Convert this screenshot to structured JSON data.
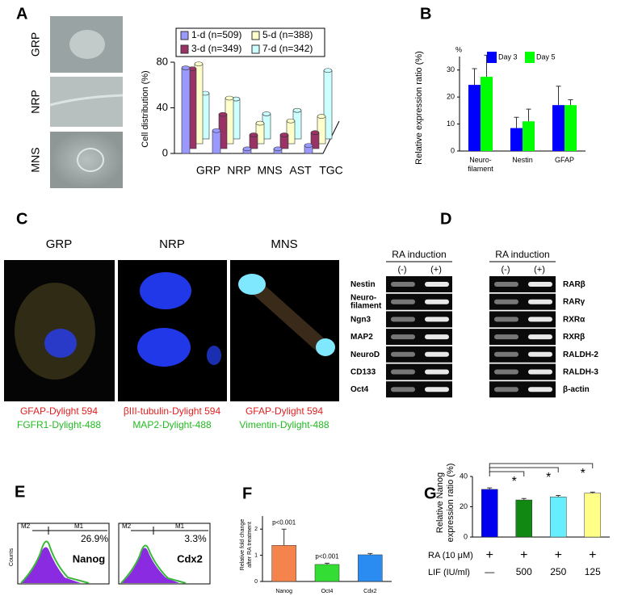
{
  "panels": {
    "labels": [
      "A",
      "B",
      "C",
      "D",
      "E",
      "F",
      "G"
    ],
    "a_images": [
      "GRP",
      "NRP",
      "MNS"
    ],
    "c_images": [
      {
        "title": "GRP",
        "red": "GFAP-Dylight  594",
        "green": "FGFR1-Dylight-488"
      },
      {
        "title": "NRP",
        "red": "βIII-tubulin-Dylight  594",
        "green": "MAP2-Dylight-488"
      },
      {
        "title": "MNS",
        "red": "GFAP-Dylight  594",
        "green": "Vimentin-Dylight-488"
      }
    ],
    "d_gels": [
      {
        "title": "RA induction",
        "lanes": [
          "(-)",
          "(+)"
        ],
        "rows": [
          "Nestin",
          "Neuro-\nfilament",
          "Ngn3",
          "MAP2",
          "NeuroD",
          "CD133",
          "Oct4"
        ]
      },
      {
        "title": "RA induction",
        "lanes": [
          "(-)",
          "(+)"
        ],
        "rows": [
          "RARβ",
          "RARγ",
          "RXRα",
          "RXRβ",
          "RALDH-2",
          "RALDH-3",
          "β-actin"
        ]
      }
    ],
    "e_plots": [
      {
        "gates": [
          "M2",
          "M1"
        ],
        "percent": "26.9%",
        "marker": "Nanog",
        "ylabel": "Counts"
      },
      {
        "gates": [
          "M2",
          "M1"
        ],
        "percent": "3.3%",
        "marker": "Cdx2"
      }
    ]
  },
  "chart_data": [
    {
      "type": "bar3d",
      "ylabel": "Cell distribution  (%)",
      "categories": [
        "GRP",
        "NRP",
        "MNS",
        "AST",
        "TGC"
      ],
      "ylim": [
        0,
        80
      ],
      "yticks": [
        0,
        40,
        80
      ],
      "series": [
        {
          "name": "1-d (n=509)",
          "color": "#9999ff",
          "values": [
            75,
            20,
            4,
            4,
            7
          ]
        },
        {
          "name": "3-d (n=349)",
          "color": "#993366",
          "values": [
            70,
            30,
            12,
            12,
            14
          ]
        },
        {
          "name": "5-d (n=388)",
          "color": "#ffffcc",
          "values": [
            70,
            40,
            18,
            20,
            24
          ]
        },
        {
          "name": "7-d (n=342)",
          "color": "#ccffff",
          "values": [
            40,
            35,
            22,
            25,
            60
          ]
        }
      ]
    },
    {
      "type": "bar",
      "ylabel": "Relative expression ratio (%)",
      "unit_label": "%",
      "categories": [
        "Neuro-\nfilament",
        "Nestin",
        "GFAP"
      ],
      "ylim": [
        0,
        35
      ],
      "yticks": [
        0,
        10,
        20,
        30
      ],
      "series": [
        {
          "name": "Day 3",
          "color": "#0000ff",
          "values": [
            24.5,
            8.5,
            17
          ],
          "errors": [
            6,
            4,
            7
          ]
        },
        {
          "name": "Day 5",
          "color": "#00ff00",
          "values": [
            27.5,
            11,
            17
          ],
          "errors": [
            8,
            4.5,
            2
          ]
        }
      ]
    },
    {
      "type": "bar",
      "ylabel": [
        "Relative fold change",
        "after RA treatment"
      ],
      "categories": [
        "Nanog",
        "Oct4",
        "Cdx2"
      ],
      "ylim": [
        0,
        2.5
      ],
      "yticks": [
        0,
        1,
        2
      ],
      "colors": [
        "#f4844c",
        "#33dd33",
        "#2a8cf0"
      ],
      "annotations": [
        "p<0.001",
        "p<0.001"
      ],
      "values": [
        1.38,
        0.65,
        1.02
      ],
      "errors": [
        0.62,
        0.05,
        0.05
      ]
    },
    {
      "type": "bar",
      "ylabel": [
        "Relative Nanog",
        "expression ratio (%)"
      ],
      "ylim": [
        0,
        40
      ],
      "yticks": [
        0,
        20,
        40
      ],
      "colors": [
        "#0000ee",
        "#118811",
        "#66eeff",
        "#ffff88"
      ],
      "values": [
        31.5,
        24.5,
        26.5,
        29
      ],
      "errors": [
        1,
        1,
        1,
        0.7
      ],
      "significance": [
        "*",
        "*",
        "*"
      ],
      "rows": [
        {
          "name": "RA (10 μM)",
          "cells": [
            "+",
            "+",
            "+",
            "+"
          ]
        },
        {
          "name": "LIF (IU/ml)",
          "cells": [
            "—",
            "500",
            "250",
            "125"
          ]
        }
      ]
    }
  ]
}
